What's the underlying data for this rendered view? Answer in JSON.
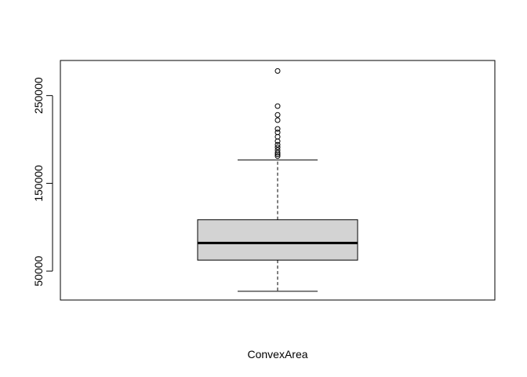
{
  "chart_data": {
    "type": "boxplot",
    "xlabel": "ConvexArea",
    "ylim": [
      17000,
      290000
    ],
    "y_ticks": [
      50000,
      150000,
      250000
    ],
    "y_tick_labels": [
      "50000",
      "150000",
      "250000"
    ],
    "box": {
      "whisker_low": 27000,
      "q1": 62500,
      "median": 82000,
      "q3": 108500,
      "whisker_high": 176500,
      "fill": "#d3d3d3"
    },
    "outliers": [
      181000,
      183000,
      185000,
      188000,
      191000,
      194000,
      198000,
      203000,
      208000,
      212000,
      222000,
      228000,
      238000,
      278000
    ]
  }
}
